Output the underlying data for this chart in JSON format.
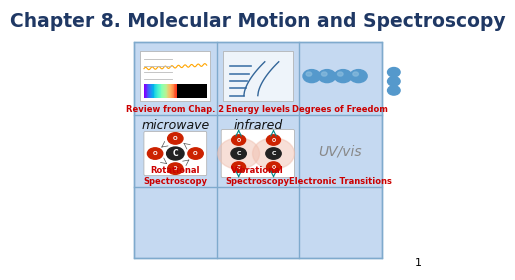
{
  "title": "Chapter 8. Molecular Motion and Spectroscopy",
  "title_color": "#1F3864",
  "title_fontsize": 13.5,
  "background_color": "#FFFFFF",
  "slide_bg": "#C5D9F1",
  "grid_color": "#7FAACD",
  "page_number": "1",
  "cell_labels": {
    "top_left": "Review from Chap. 2",
    "top_mid": "Energy levels",
    "top_right": "Degrees of Freedom",
    "mid_left_text": "microwave",
    "mid_mid_text": "infrared",
    "mid_right_text": "UV/vis",
    "bot_left": "Rotational\nSpectroscopy",
    "bot_mid": "Vibrational\nSpectroscopy",
    "bot_right": "Electronic Transitions"
  },
  "label_color": "#CC0000",
  "cell_text_color": "#111111",
  "uvvis_color": "#888888",
  "col_splits": [
    0.145,
    0.382,
    0.618,
    0.855
  ],
  "row_splits": [
    0.875,
    0.595,
    0.32,
    0.045
  ]
}
